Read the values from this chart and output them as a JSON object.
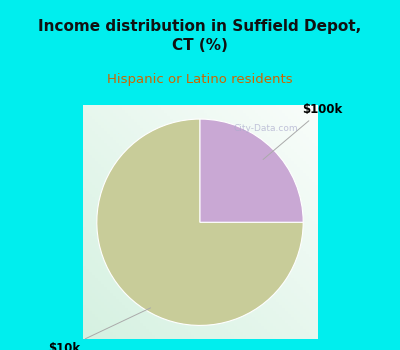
{
  "title": "Income distribution in Suffield Depot,\nCT (%)",
  "subtitle": "Hispanic or Latino residents",
  "title_fontsize": 11,
  "subtitle_fontsize": 9.5,
  "title_color": "#111111",
  "subtitle_color": "#cc6600",
  "background_color": "#00eeee",
  "chart_area_color": "#e8f5ee",
  "slices": [
    75.0,
    25.0
  ],
  "slice_colors": [
    "#c8cc99",
    "#c9a8d4"
  ],
  "slice_labels": [
    "$10k",
    "$100k"
  ],
  "start_angle": 90,
  "watermark": "City-Data.com"
}
